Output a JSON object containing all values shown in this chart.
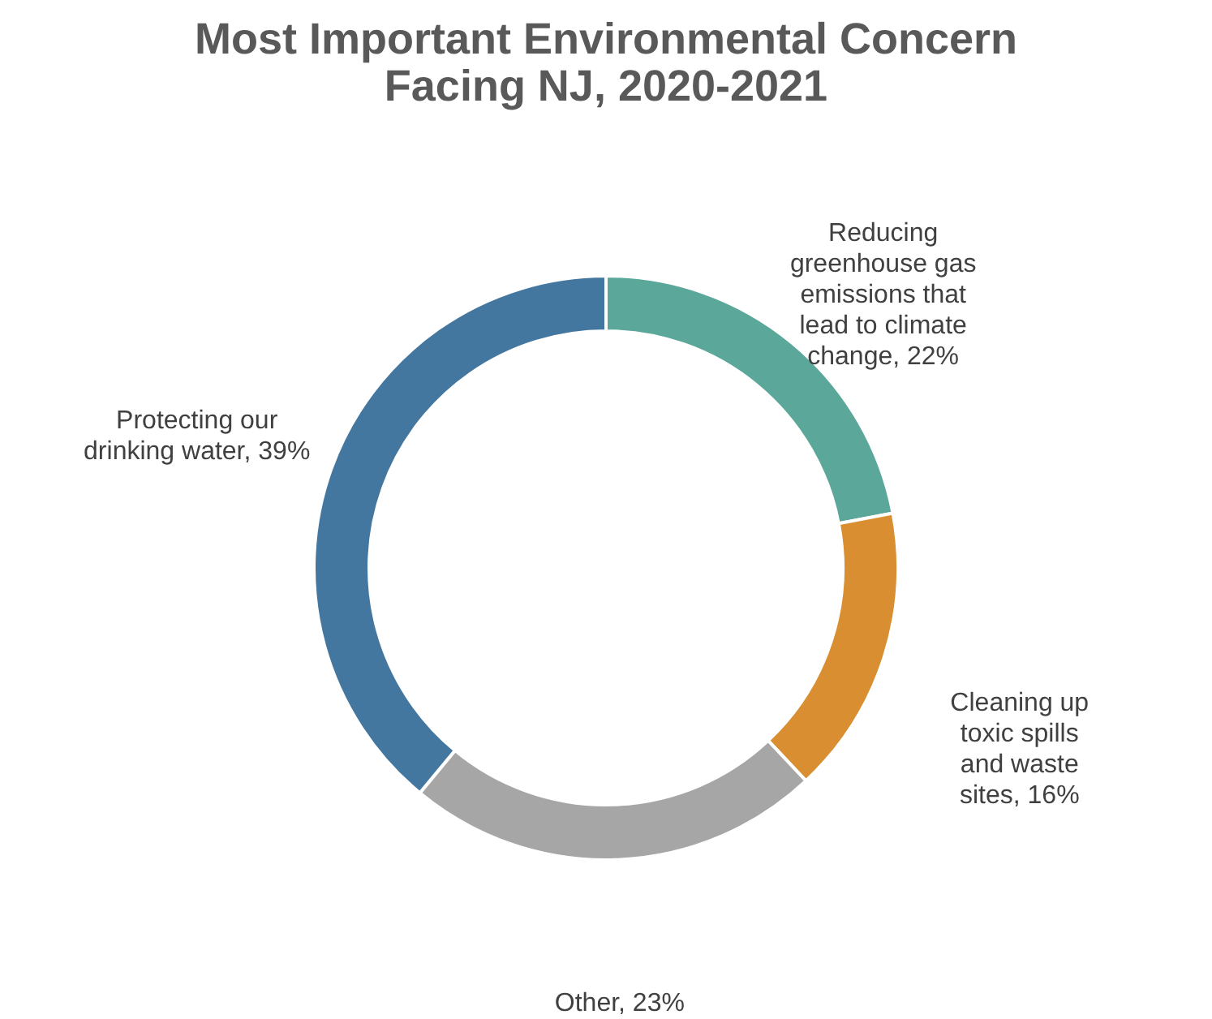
{
  "chart_data": {
    "type": "donut",
    "title": "Most Important Environmental Concern Facing NJ, 2020-2021",
    "categories": [
      "Reducing greenhouse gas emissions that lead to climate change",
      "Cleaning up toxic spills and waste sites",
      "Other",
      "Protecting our drinking water"
    ],
    "values": [
      22,
      16,
      23,
      39
    ],
    "value_labels": [
      "22%",
      "16%",
      "23%",
      "39%"
    ],
    "colors": [
      "#5ba89a",
      "#d98e31",
      "#a6a6a6",
      "#44779f"
    ]
  }
}
